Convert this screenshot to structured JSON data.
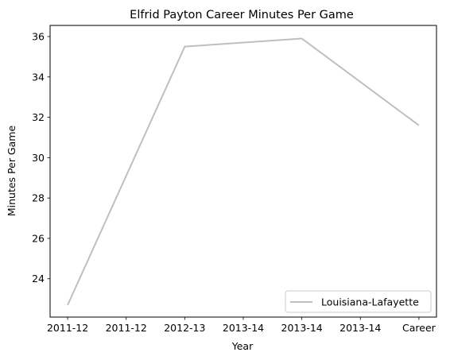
{
  "chart_data": {
    "type": "line",
    "title": "Elfrid Payton  Career Minutes Per Game",
    "xlabel": "Year",
    "ylabel": "Minutes Per Game",
    "categories": [
      "2011-12",
      "2011-12",
      "2012-13",
      "2013-14",
      "2013-14",
      "2013-14",
      "Career"
    ],
    "tick_labels": [
      "2011-12",
      "2011-12",
      "2012-13",
      "2013-14",
      "2013-14",
      "2013-14",
      "Career"
    ],
    "series": [
      {
        "name": "Louisiana-Lafayette",
        "color": "#bfbfbf",
        "points": [
          {
            "x": 0,
            "y": 22.7
          },
          {
            "x": 2,
            "y": 35.5
          },
          {
            "x": 4,
            "y": 35.9
          },
          {
            "x": 6,
            "y": 31.6
          }
        ]
      }
    ],
    "yticks": [
      24,
      26,
      28,
      30,
      32,
      34,
      36
    ],
    "ylim": [
      22.1,
      36.55
    ],
    "xlim": [
      -0.3,
      6.3
    ],
    "grid": false,
    "legend_position": "lower right"
  }
}
